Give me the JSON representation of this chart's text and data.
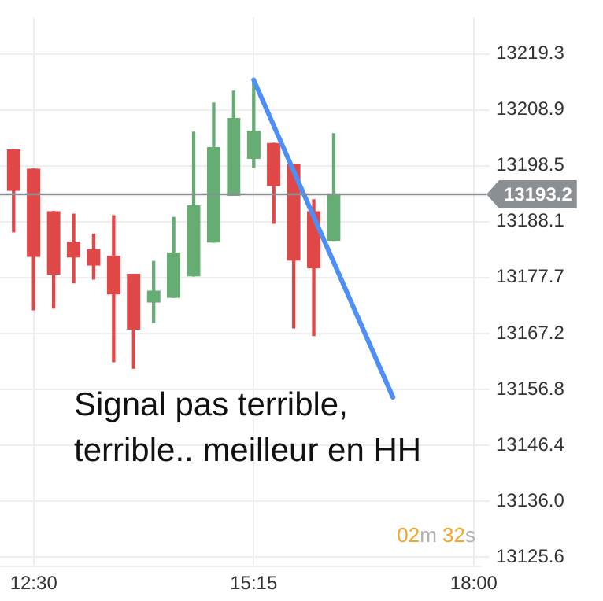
{
  "chart_data": {
    "type": "candlestick",
    "x": [
      12.25,
      12.5,
      12.75,
      13.0,
      13.25,
      13.5,
      13.75,
      14.0,
      14.25,
      14.5,
      14.75,
      15.0,
      15.25,
      15.5,
      15.75,
      16.0,
      16.25
    ],
    "ohlc": [
      [
        13201.5,
        13201.5,
        13186.2,
        13193.9
      ],
      [
        13197.9,
        13197.9,
        13171.7,
        13181.6
      ],
      [
        13190.0,
        13190.0,
        13172.0,
        13178.3
      ],
      [
        13184.3,
        13189.5,
        13176.7,
        13181.5
      ],
      [
        13182.9,
        13185.8,
        13177.4,
        13180.0
      ],
      [
        13181.7,
        13189.2,
        13162.0,
        13174.6
      ],
      [
        13178.3,
        13178.3,
        13160.8,
        13168.1
      ],
      [
        13173.1,
        13180.7,
        13169.3,
        13175.2
      ],
      [
        13174.0,
        13188.9,
        13174.0,
        13182.3
      ],
      [
        13178.0,
        13204.8,
        13178.0,
        13191.1
      ],
      [
        13184.3,
        13210.2,
        13184.3,
        13201.9
      ],
      [
        13193.0,
        13212.4,
        13193.0,
        13207.3
      ],
      [
        13199.9,
        13214.5,
        13198.2,
        13205.0
      ],
      [
        13202.7,
        13202.7,
        13187.8,
        13194.8
      ],
      [
        13198.8,
        13198.8,
        13168.3,
        13180.9
      ],
      [
        13190.0,
        13192.2,
        13166.9,
        13179.5
      ],
      [
        13184.6,
        13204.5,
        13184.6,
        13193.2
      ]
    ],
    "colors": [
      "#e04848",
      "#e04848",
      "#e04848",
      "#e04848",
      "#e04848",
      "#e04848",
      "#e04848",
      "#66ad74",
      "#66ad74",
      "#66ad74",
      "#66ad74",
      "#66ad74",
      "#66ad74",
      "#e04848",
      "#e04848",
      "#e04848",
      "#66ad74"
    ],
    "series": [
      {
        "type": "line",
        "color": "#4d8ef7",
        "x": [
          15.25,
          16.99
        ],
        "values": [
          13214.5,
          13155.4
        ]
      }
    ],
    "xlim": [
      12.08,
      18.08
    ],
    "xticks": [
      {
        "value": 12.5,
        "label": "12:30"
      },
      {
        "value": 15.25,
        "label": "15:15"
      },
      {
        "value": 18,
        "label": "18:00"
      }
    ],
    "ylim": [
      13123.9,
      13226.1
    ],
    "yticks": [
      13125.6,
      {
        "value": 13136.0,
        "label": "13136.0"
      },
      13146.4,
      13156.8,
      13167.2,
      13177.7,
      13188.1,
      13198.5,
      13208.9,
      13219.3
    ],
    "ref_lines": [
      {
        "axis": "y",
        "value": 13193.2,
        "label": "13193.2",
        "color": "#8a8f94"
      }
    ],
    "annotations": [
      "Signal pas terrible, terrible.. meilleur en HH",
      "02m 32s"
    ],
    "grid": true,
    "legend": false
  }
}
